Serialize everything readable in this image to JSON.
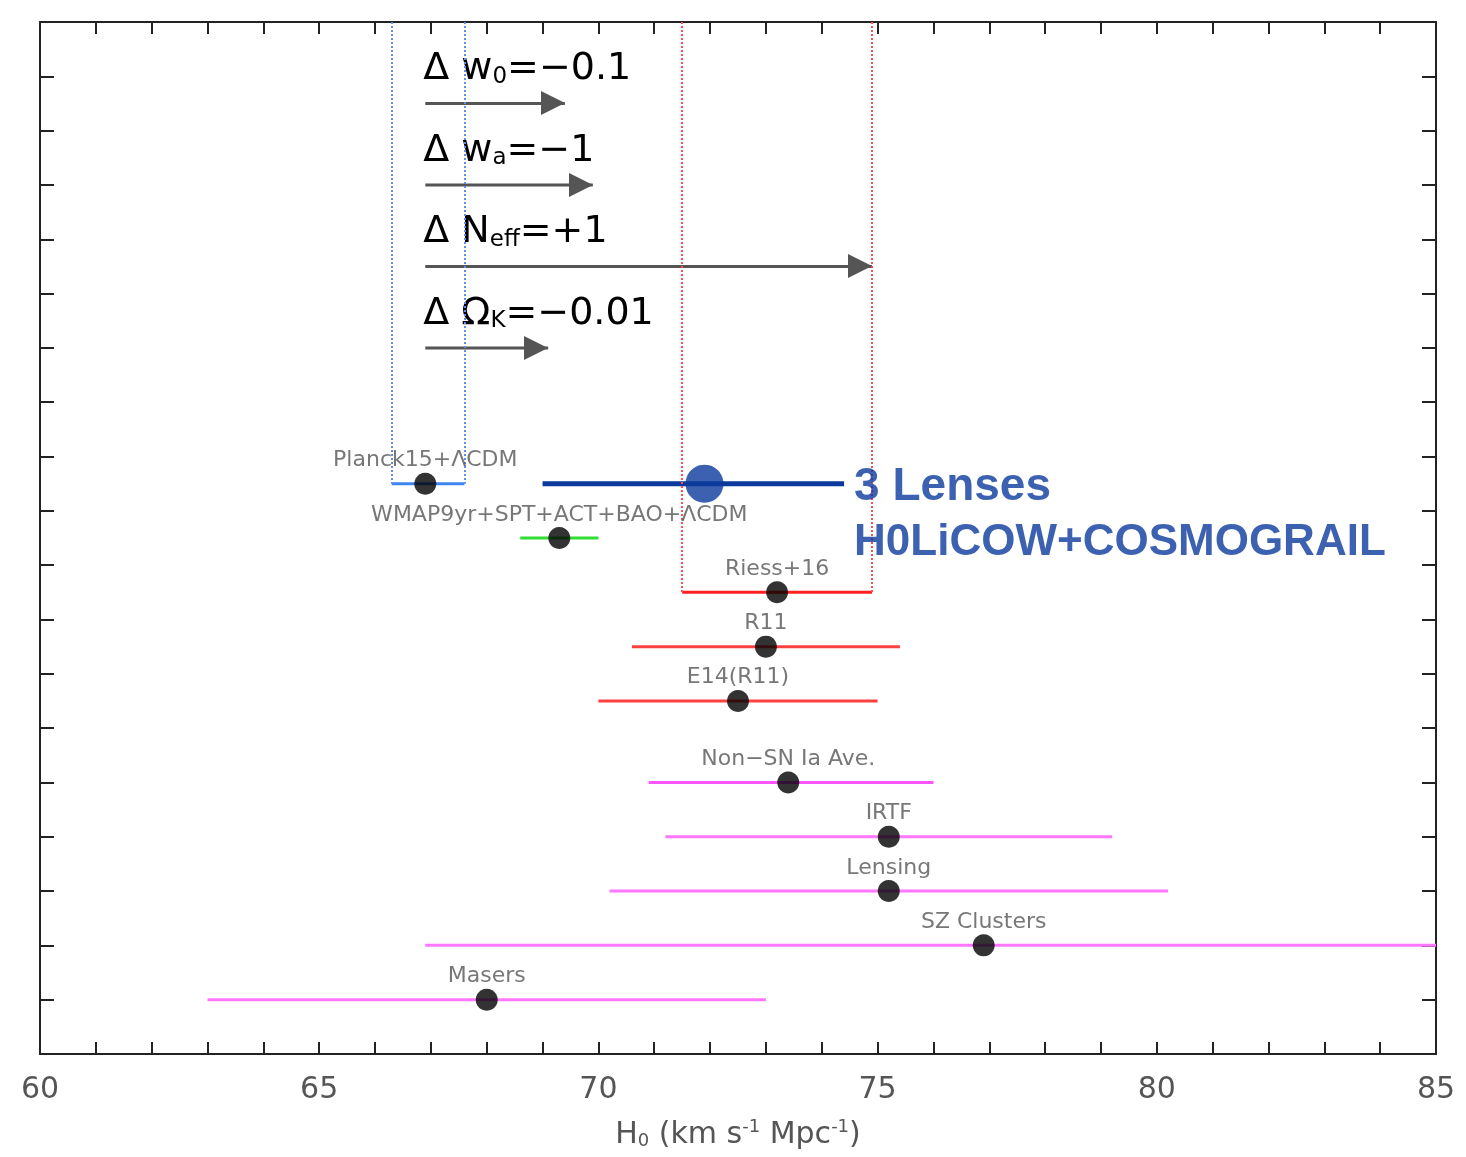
{
  "chart_data": {
    "type": "scatter",
    "orientation": "horizontal",
    "xlabel": "H$_{0}$ (km s$^{-1}$ Mpc$^{-1}$)",
    "categories": [
      null,
      null,
      null,
      null,
      null,
      null,
      null,
      null,
      null,
      null,
      null,
      null,
      null,
      null,
      null,
      null,
      null,
      null,
      null,
      null,
      null,
      null,
      null,
      null,
      null,
      null,
      null,
      null,
      null,
      null,
      null,
      null,
      null,
      null,
      null,
      null,
      null,
      null,
      null
    ],
    "xlim": [
      60,
      85
    ],
    "xticks": [
      60,
      {
        "value": 61,
        "label": null
      },
      {
        "value": 62,
        "label": null
      },
      {
        "value": 63,
        "label": null
      },
      {
        "value": 64,
        "label": null
      },
      65,
      {
        "value": 66,
        "label": null
      },
      {
        "value": 67,
        "label": null
      },
      {
        "value": 68,
        "label": null
      },
      {
        "value": 69,
        "label": null
      },
      70,
      {
        "value": 71,
        "label": null
      },
      {
        "value": 72,
        "label": null
      },
      {
        "value": 73,
        "label": null
      },
      {
        "value": 74,
        "label": null
      },
      75,
      {
        "value": 76,
        "label": null
      },
      {
        "value": 77,
        "label": null
      },
      {
        "value": 78,
        "label": null
      },
      {
        "value": 79,
        "label": null
      },
      80,
      {
        "value": 81,
        "label": null
      },
      {
        "value": 82,
        "label": null
      },
      {
        "value": 83,
        "label": null
      },
      {
        "value": 84,
        "label": null
      },
      85
    ],
    "tick_labels": "x",
    "marker": "circle",
    "series": [
      {
        "name": "Planck15+ΛCDM",
        "color": "#3d86f0",
        "values": [
          null,
          null,
          null,
          null,
          null,
          null,
          null,
          null,
          null,
          null,
          null,
          null,
          null,
          null,
          null,
          null,
          null,
          66.9,
          null,
          null,
          null,
          null,
          null,
          null,
          null,
          null,
          null,
          null,
          null,
          null,
          null,
          null,
          null,
          null,
          null,
          null,
          null,
          null,
          null
        ],
        "errors": [
          null,
          null,
          null,
          null,
          null,
          null,
          null,
          null,
          null,
          null,
          null,
          null,
          null,
          null,
          null,
          null,
          null,
          [
            66.3,
            67.6
          ],
          null,
          null,
          null,
          null,
          null,
          null,
          null,
          null,
          null,
          null,
          null,
          null,
          null,
          null,
          null,
          null,
          null,
          null,
          null,
          null,
          null
        ],
        "colors": [
          null,
          null,
          null,
          null,
          null,
          null,
          null,
          null,
          null,
          null,
          null,
          null,
          null,
          null,
          null,
          null,
          null,
          "#000000",
          null,
          null,
          null,
          null,
          null,
          null,
          null,
          null,
          null,
          null,
          null,
          null,
          null,
          null,
          null,
          null,
          null,
          null,
          null,
          null,
          null
        ]
      },
      {
        "name": "3 Lenses\nH0LiCOW+COSMOGRAIL",
        "color": "#0b3a9c",
        "values": [
          null,
          null,
          null,
          null,
          null,
          null,
          null,
          null,
          null,
          null,
          null,
          null,
          null,
          null,
          null,
          null,
          null,
          71.9,
          null,
          null,
          null,
          null,
          null,
          null,
          null,
          null,
          null,
          null,
          null,
          null,
          null,
          null,
          null,
          null,
          null,
          null,
          null,
          null,
          null
        ],
        "errors": [
          null,
          null,
          null,
          null,
          null,
          null,
          null,
          null,
          null,
          null,
          null,
          null,
          null,
          null,
          null,
          null,
          null,
          [
            69.0,
            74.4
          ],
          null,
          null,
          null,
          null,
          null,
          null,
          null,
          null,
          null,
          null,
          null,
          null,
          null,
          null,
          null,
          null,
          null,
          null,
          null,
          null,
          null
        ],
        "colors": [
          null,
          null,
          null,
          null,
          null,
          null,
          null,
          null,
          null,
          null,
          null,
          null,
          null,
          null,
          null,
          null,
          null,
          "#0b3a9c",
          null,
          null,
          null,
          null,
          null,
          null,
          null,
          null,
          null,
          null,
          null,
          null,
          null,
          null,
          null,
          null,
          null,
          null,
          null,
          null,
          null
        ]
      },
      {
        "name": "WMAP9yr+SPT+ACT+BAO+ΛCDM",
        "color": "#33dd33",
        "values": [
          null,
          null,
          null,
          null,
          null,
          null,
          null,
          null,
          null,
          null,
          null,
          null,
          null,
          null,
          null,
          null,
          null,
          null,
          null,
          69.3,
          null,
          null,
          null,
          null,
          null,
          null,
          null,
          null,
          null,
          null,
          null,
          null,
          null,
          null,
          null,
          null,
          null,
          null,
          null
        ],
        "errors": [
          null,
          null,
          null,
          null,
          null,
          null,
          null,
          null,
          null,
          null,
          null,
          null,
          null,
          null,
          null,
          null,
          null,
          null,
          null,
          [
            68.6,
            70.0
          ],
          null,
          null,
          null,
          null,
          null,
          null,
          null,
          null,
          null,
          null,
          null,
          null,
          null,
          null,
          null,
          null,
          null,
          null,
          null
        ],
        "colors": [
          null,
          null,
          null,
          null,
          null,
          null,
          null,
          null,
          null,
          null,
          null,
          null,
          null,
          null,
          null,
          null,
          null,
          null,
          null,
          "#000000",
          null,
          null,
          null,
          null,
          null,
          null,
          null,
          null,
          null,
          null,
          null,
          null,
          null,
          null,
          null,
          null,
          null,
          null,
          null
        ]
      },
      {
        "name": "Riess+16",
        "color": "#ff2020",
        "values": [
          null,
          null,
          null,
          null,
          null,
          null,
          null,
          null,
          null,
          null,
          null,
          null,
          null,
          null,
          null,
          null,
          null,
          null,
          null,
          null,
          null,
          73.2,
          null,
          null,
          null,
          null,
          null,
          null,
          null,
          null,
          null,
          null,
          null,
          null,
          null,
          null,
          null,
          null,
          null
        ],
        "errors": [
          null,
          null,
          null,
          null,
          null,
          null,
          null,
          null,
          null,
          null,
          null,
          null,
          null,
          null,
          null,
          null,
          null,
          null,
          null,
          null,
          null,
          [
            71.5,
            74.9
          ],
          null,
          null,
          null,
          null,
          null,
          null,
          null,
          null,
          null,
          null,
          null,
          null,
          null,
          null,
          null,
          null,
          null
        ],
        "colors": [
          null,
          null,
          null,
          null,
          null,
          null,
          null,
          null,
          null,
          null,
          null,
          null,
          null,
          null,
          null,
          null,
          null,
          null,
          null,
          null,
          null,
          "#000000",
          null,
          null,
          null,
          null,
          null,
          null,
          null,
          null,
          null,
          null,
          null,
          null,
          null,
          null,
          null,
          null,
          null
        ]
      },
      {
        "name": "R11",
        "color": "#ff4040",
        "values": [
          null,
          null,
          null,
          null,
          null,
          null,
          null,
          null,
          null,
          null,
          null,
          null,
          null,
          null,
          null,
          null,
          null,
          null,
          null,
          null,
          null,
          null,
          null,
          73.0,
          null,
          null,
          null,
          null,
          null,
          null,
          null,
          null,
          null,
          null,
          null,
          null,
          null,
          null,
          null
        ],
        "errors": [
          null,
          null,
          null,
          null,
          null,
          null,
          null,
          null,
          null,
          null,
          null,
          null,
          null,
          null,
          null,
          null,
          null,
          null,
          null,
          null,
          null,
          null,
          null,
          [
            70.6,
            75.4
          ],
          null,
          null,
          null,
          null,
          null,
          null,
          null,
          null,
          null,
          null,
          null,
          null,
          null,
          null,
          null
        ],
        "colors": [
          null,
          null,
          null,
          null,
          null,
          null,
          null,
          null,
          null,
          null,
          null,
          null,
          null,
          null,
          null,
          null,
          null,
          null,
          null,
          null,
          null,
          null,
          null,
          "#000000",
          null,
          null,
          null,
          null,
          null,
          null,
          null,
          null,
          null,
          null,
          null,
          null,
          null,
          null,
          null
        ]
      },
      {
        "name": "E14(R11)",
        "color": "#ff4040",
        "values": [
          null,
          null,
          null,
          null,
          null,
          null,
          null,
          null,
          null,
          null,
          null,
          null,
          null,
          null,
          null,
          null,
          null,
          null,
          null,
          null,
          null,
          null,
          null,
          null,
          null,
          72.5,
          null,
          null,
          null,
          null,
          null,
          null,
          null,
          null,
          null,
          null,
          null,
          null,
          null
        ],
        "errors": [
          null,
          null,
          null,
          null,
          null,
          null,
          null,
          null,
          null,
          null,
          null,
          null,
          null,
          null,
          null,
          null,
          null,
          null,
          null,
          null,
          null,
          null,
          null,
          null,
          null,
          [
            70.0,
            75.0
          ],
          null,
          null,
          null,
          null,
          null,
          null,
          null,
          null,
          null,
          null,
          null,
          null,
          null
        ],
        "colors": [
          null,
          null,
          null,
          null,
          null,
          null,
          null,
          null,
          null,
          null,
          null,
          null,
          null,
          null,
          null,
          null,
          null,
          null,
          null,
          null,
          null,
          null,
          null,
          null,
          null,
          "#000000",
          null,
          null,
          null,
          null,
          null,
          null,
          null,
          null,
          null,
          null,
          null,
          null,
          null
        ]
      },
      {
        "name": "Non−SN Ia Ave.",
        "color": "#ff55ff",
        "values": [
          null,
          null,
          null,
          null,
          null,
          null,
          null,
          null,
          null,
          null,
          null,
          null,
          null,
          null,
          null,
          null,
          null,
          null,
          null,
          null,
          null,
          null,
          null,
          null,
          null,
          null,
          null,
          null,
          73.4,
          null,
          null,
          null,
          null,
          null,
          null,
          null,
          null,
          null,
          null
        ],
        "errors": [
          null,
          null,
          null,
          null,
          null,
          null,
          null,
          null,
          null,
          null,
          null,
          null,
          null,
          null,
          null,
          null,
          null,
          null,
          null,
          null,
          null,
          null,
          null,
          null,
          null,
          null,
          null,
          null,
          [
            70.9,
            76.0
          ],
          null,
          null,
          null,
          null,
          null,
          null,
          null,
          null,
          null,
          null
        ],
        "colors": [
          null,
          null,
          null,
          null,
          null,
          null,
          null,
          null,
          null,
          null,
          null,
          null,
          null,
          null,
          null,
          null,
          null,
          null,
          null,
          null,
          null,
          null,
          null,
          null,
          null,
          null,
          null,
          null,
          "#000000",
          null,
          null,
          null,
          null,
          null,
          null,
          null,
          null,
          null,
          null
        ]
      },
      {
        "name": "IRTF",
        "color": "#ff77ff",
        "values": [
          null,
          null,
          null,
          null,
          null,
          null,
          null,
          null,
          null,
          null,
          null,
          null,
          null,
          null,
          null,
          null,
          null,
          null,
          null,
          null,
          null,
          null,
          null,
          null,
          null,
          null,
          null,
          null,
          null,
          null,
          75.2,
          null,
          null,
          null,
          null,
          null,
          null,
          null,
          null
        ],
        "errors": [
          null,
          null,
          null,
          null,
          null,
          null,
          null,
          null,
          null,
          null,
          null,
          null,
          null,
          null,
          null,
          null,
          null,
          null,
          null,
          null,
          null,
          null,
          null,
          null,
          null,
          null,
          null,
          null,
          null,
          null,
          [
            71.2,
            79.2
          ],
          null,
          null,
          null,
          null,
          null,
          null,
          null,
          null
        ],
        "colors": [
          null,
          null,
          null,
          null,
          null,
          null,
          null,
          null,
          null,
          null,
          null,
          null,
          null,
          null,
          null,
          null,
          null,
          null,
          null,
          null,
          null,
          null,
          null,
          null,
          null,
          null,
          null,
          null,
          null,
          null,
          "#000000",
          null,
          null,
          null,
          null,
          null,
          null,
          null,
          null
        ]
      },
      {
        "name": "Lensing",
        "color": "#ff77ff",
        "values": [
          null,
          null,
          null,
          null,
          null,
          null,
          null,
          null,
          null,
          null,
          null,
          null,
          null,
          null,
          null,
          null,
          null,
          null,
          null,
          null,
          null,
          null,
          null,
          null,
          null,
          null,
          null,
          null,
          null,
          null,
          null,
          null,
          75.2,
          null,
          null,
          null,
          null,
          null,
          null
        ],
        "errors": [
          null,
          null,
          null,
          null,
          null,
          null,
          null,
          null,
          null,
          null,
          null,
          null,
          null,
          null,
          null,
          null,
          null,
          null,
          null,
          null,
          null,
          null,
          null,
          null,
          null,
          null,
          null,
          null,
          null,
          null,
          null,
          null,
          [
            70.2,
            80.2
          ],
          null,
          null,
          null,
          null,
          null,
          null
        ],
        "colors": [
          null,
          null,
          null,
          null,
          null,
          null,
          null,
          null,
          null,
          null,
          null,
          null,
          null,
          null,
          null,
          null,
          null,
          null,
          null,
          null,
          null,
          null,
          null,
          null,
          null,
          null,
          null,
          null,
          null,
          null,
          null,
          null,
          "#000000",
          null,
          null,
          null,
          null,
          null,
          null
        ]
      },
      {
        "name": "SZ Clusters",
        "color": "#ff77ff",
        "values": [
          null,
          null,
          null,
          null,
          null,
          null,
          null,
          null,
          null,
          null,
          null,
          null,
          null,
          null,
          null,
          null,
          null,
          null,
          null,
          null,
          null,
          null,
          null,
          null,
          null,
          null,
          null,
          null,
          null,
          null,
          null,
          null,
          null,
          null,
          76.9,
          null,
          null,
          null,
          null
        ],
        "errors": [
          null,
          null,
          null,
          null,
          null,
          null,
          null,
          null,
          null,
          null,
          null,
          null,
          null,
          null,
          null,
          null,
          null,
          null,
          null,
          null,
          null,
          null,
          null,
          null,
          null,
          null,
          null,
          null,
          null,
          null,
          null,
          null,
          null,
          null,
          [
            66.9,
            85.0
          ],
          null,
          null,
          null,
          null
        ],
        "colors": [
          null,
          null,
          null,
          null,
          null,
          null,
          null,
          null,
          null,
          null,
          null,
          null,
          null,
          null,
          null,
          null,
          null,
          null,
          null,
          null,
          null,
          null,
          null,
          null,
          null,
          null,
          null,
          null,
          null,
          null,
          null,
          null,
          null,
          null,
          "#000000",
          null,
          null,
          null,
          null
        ]
      },
      {
        "name": "Masers",
        "color": "#ff77ff",
        "values": [
          null,
          null,
          null,
          null,
          null,
          null,
          null,
          null,
          null,
          null,
          null,
          null,
          null,
          null,
          null,
          null,
          null,
          null,
          null,
          null,
          null,
          null,
          null,
          null,
          null,
          null,
          null,
          null,
          null,
          null,
          null,
          null,
          null,
          null,
          null,
          null,
          68.0,
          null,
          null
        ],
        "errors": [
          null,
          null,
          null,
          null,
          null,
          null,
          null,
          null,
          null,
          null,
          null,
          null,
          null,
          null,
          null,
          null,
          null,
          null,
          null,
          null,
          null,
          null,
          null,
          null,
          null,
          null,
          null,
          null,
          null,
          null,
          null,
          null,
          null,
          null,
          null,
          null,
          [
            63.0,
            73.0
          ],
          null,
          null
        ],
        "colors": [
          null,
          null,
          null,
          null,
          null,
          null,
          null,
          null,
          null,
          null,
          null,
          null,
          null,
          null,
          null,
          null,
          null,
          null,
          null,
          null,
          null,
          null,
          null,
          null,
          null,
          null,
          null,
          null,
          null,
          null,
          null,
          null,
          null,
          null,
          null,
          null,
          "#000000",
          null,
          null
        ]
      },
      {
        "type": "bar",
        "color": "#555555",
        "base": [
          null,
          null,
          null,
          66.9,
          null,
          null,
          66.9,
          null,
          null,
          66.9,
          null,
          null,
          66.9,
          null,
          null,
          null,
          null,
          null,
          null,
          null,
          null,
          null,
          null,
          null,
          null,
          null,
          null,
          null,
          null,
          null,
          null,
          null,
          null,
          null,
          null,
          null,
          null,
          null,
          null
        ],
        "values": [
          null,
          null,
          null,
          2.5,
          null,
          null,
          3.0,
          null,
          null,
          8.0,
          null,
          null,
          2.2,
          null,
          null,
          null,
          null,
          null,
          null,
          null,
          null,
          null,
          null,
          null,
          null,
          null,
          null,
          null,
          null,
          null,
          null,
          null,
          null,
          null,
          null,
          null,
          null,
          null,
          null
        ]
      }
    ],
    "ref_lines": [
      {
        "axis": "x",
        "value": 66.3,
        "color": "#5b8fe8",
        "line_style": "dotted"
      },
      {
        "axis": "x",
        "value": 67.6,
        "color": "#5b8fe8",
        "line_style": "dotted"
      },
      {
        "axis": "x",
        "value": 71.5,
        "color": "#ff5050",
        "line_style": "dotted"
      },
      {
        "axis": "x",
        "value": 74.9,
        "color": "#ff5050",
        "line_style": "dotted"
      }
    ],
    "annotations": [
      "Δ w$_{0}$=−0.1",
      "Δ w$_{a}$=−1",
      "Δ N$_{eff}$=+1",
      "Δ Ω$_{K}$=−0.01"
    ]
  }
}
